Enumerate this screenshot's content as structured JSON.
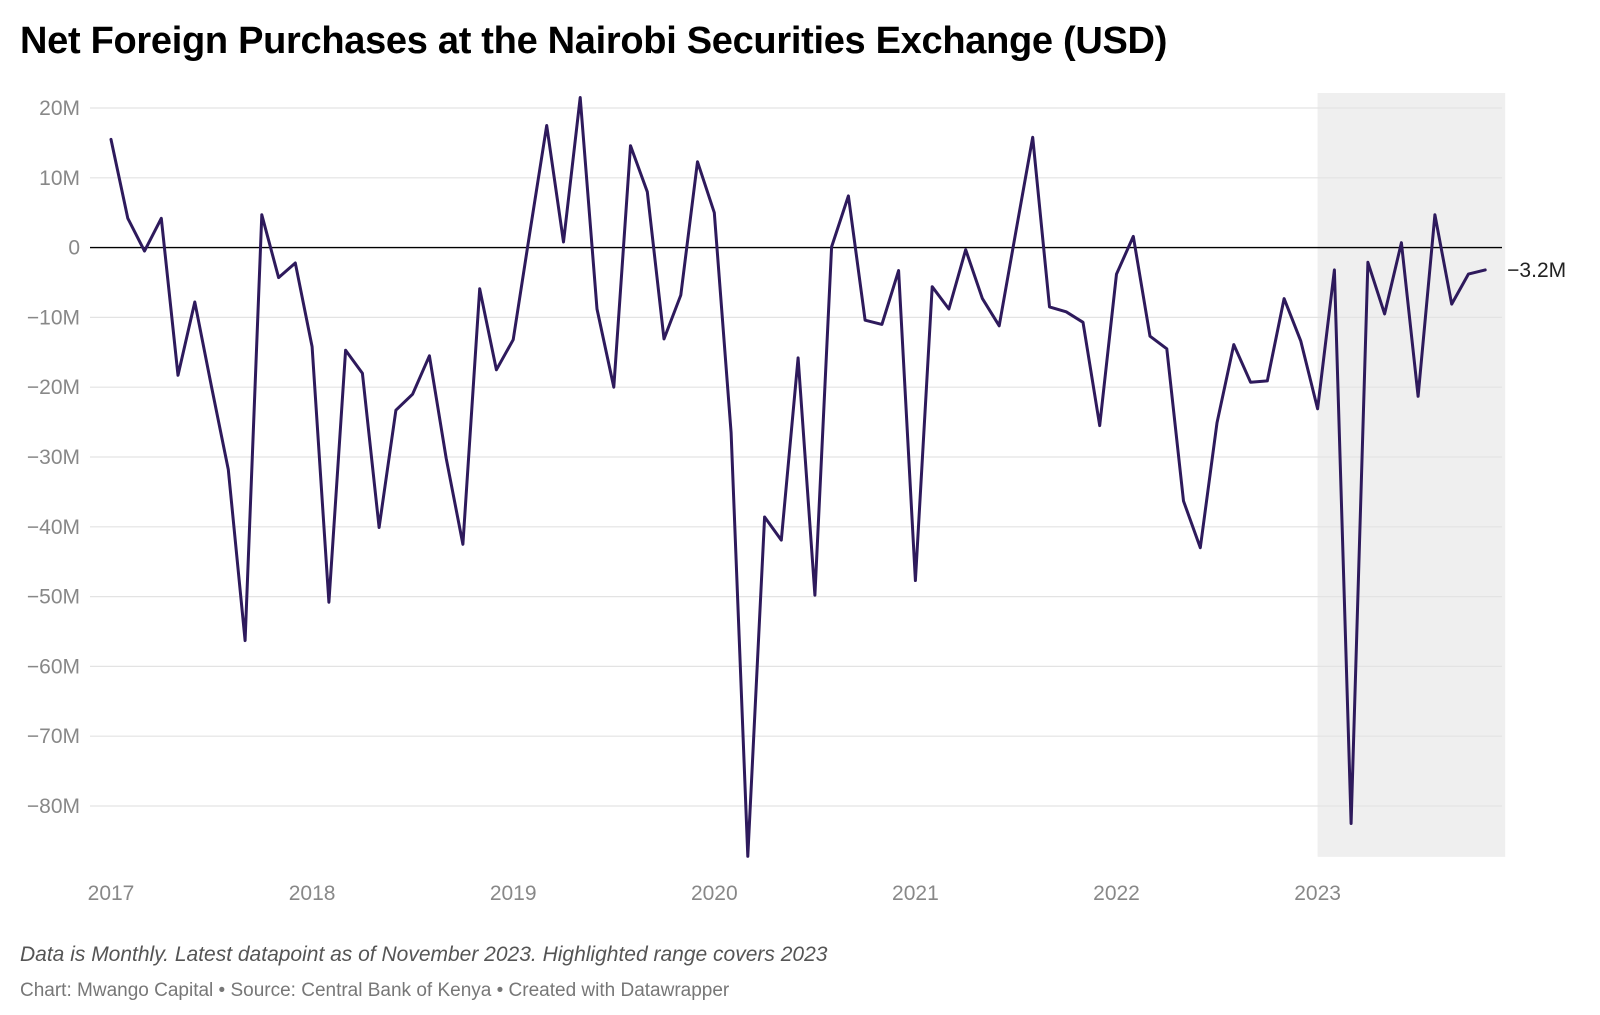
{
  "title": "Net Foreign Purchases at the Nairobi Securities Exchange (USD)",
  "notes": "Data is Monthly. Latest datapoint as of November 2023. Highlighted range covers 2023",
  "credit": "Chart: Mwango Capital • Source: Central Bank of Kenya • Created with Datawrapper",
  "colors": {
    "line": "#2e1a5c",
    "highlight": "#efefef",
    "grid": "#e3e3e3",
    "axis_text": "#888888",
    "zero_line": "#000000"
  },
  "chart_data": {
    "type": "line",
    "frequency": "monthly",
    "x_start": "2017-01",
    "x_end": "2023-11",
    "x_ticks": [
      "2017",
      "2018",
      "2019",
      "2020",
      "2021",
      "2022",
      "2023"
    ],
    "y_ticks": [
      20,
      10,
      0,
      -10,
      -20,
      -30,
      -40,
      -50,
      -60,
      -70,
      -80
    ],
    "y_tick_labels": [
      "20M",
      "10M",
      "0",
      "−10M",
      "−20M",
      "−30M",
      "−40M",
      "−50M",
      "−60M",
      "−70M",
      "−80M"
    ],
    "ylim": [
      -87,
      21
    ],
    "highlight_range": [
      "2023-01",
      "2023-11"
    ],
    "end_label": "−3.2M",
    "series": [
      {
        "values": [
          15.5,
          4.2,
          -0.5,
          4.2,
          -18.3,
          -7.8,
          -20.0,
          -31.8,
          -56.3,
          4.7,
          -4.3,
          -2.2,
          -14.2,
          -50.8,
          -14.7,
          -18.0,
          -40.1,
          -23.3,
          -21.0,
          -15.5,
          -30.2,
          -42.5,
          -5.9,
          -17.5,
          -13.2,
          2.3,
          17.5,
          0.8,
          21.5,
          -8.8,
          -20.0,
          14.6,
          8.0,
          -13.1,
          -6.8,
          12.3,
          5.0,
          -26.5,
          -87.2,
          -38.6,
          -41.9,
          -15.8,
          -49.8,
          0.1,
          7.4,
          -10.4,
          -11.0,
          -3.3,
          -47.7,
          -5.6,
          -8.8,
          -0.3,
          -7.3,
          -11.2,
          2.3,
          15.8,
          -8.5,
          -9.2,
          -10.7,
          -25.5,
          -3.8,
          1.6,
          -12.7,
          -14.5,
          -36.3,
          -43.0,
          -25.1,
          -13.9,
          -19.3,
          -19.1,
          -7.3,
          -13.4,
          -23.1,
          -3.2,
          -82.5,
          -2.1,
          -9.5,
          0.7,
          -21.3,
          4.7,
          -8.1,
          -3.8,
          -3.2
        ]
      }
    ],
    "grid": true,
    "zero_line": true
  }
}
